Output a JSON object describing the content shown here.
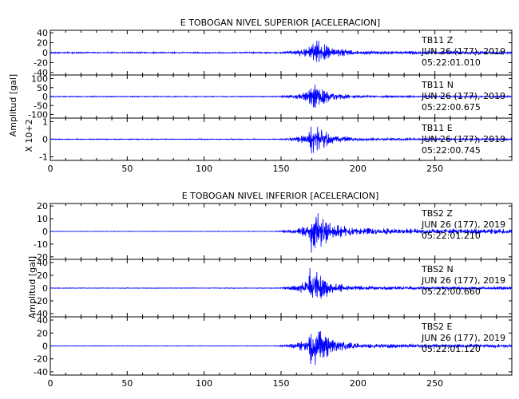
{
  "chart_data": [
    {
      "type": "line",
      "title": "E TOBOGAN NIVEL SUPERIOR [ACELERACION]",
      "ylabel": "Amplitud [gal]",
      "scale_label": "X 10+2",
      "xlim": [
        0,
        300
      ],
      "x_ticks": [
        0,
        50,
        100,
        150,
        200,
        250
      ],
      "color": "#0000ff",
      "panels": [
        {
          "station": "TB11",
          "component": "Z",
          "date": "JUN 26 (177), 2019",
          "time": "05:22:01.010",
          "ylim": [
            -45,
            45
          ],
          "y_ticks": [
            40,
            20,
            0,
            -20,
            -40
          ],
          "y_tick_labels": [
            "40",
            "20",
            "0",
            "-20",
            "-40"
          ],
          "onset": 143,
          "peak_time": 170,
          "peak_amplitude": 35,
          "pre_noise": 1.5,
          "coda_level": 3,
          "coda_decay": 30,
          "cycles_per_sec": 1.6
        },
        {
          "station": "TB11",
          "component": "N",
          "date": "JUN 26 (177), 2019",
          "time": "05:22:00.675",
          "ylim": [
            -120,
            120
          ],
          "y_ticks": [
            100,
            50,
            0,
            -50,
            -100
          ],
          "y_tick_labels": [
            "100",
            "50",
            "0",
            "-50",
            "-100"
          ],
          "onset": 145,
          "peak_time": 170,
          "peak_amplitude": 100,
          "pre_noise": 3,
          "coda_level": 5,
          "coda_decay": 28,
          "cycles_per_sec": 1.6
        },
        {
          "station": "TB11",
          "component": "E",
          "date": "JUN 26 (177), 2019",
          "time": "05:22:00.745",
          "ylim": [
            -1.2,
            1.2
          ],
          "y_ticks": [
            1,
            0,
            -1
          ],
          "y_tick_labels": [
            "1",
            "0",
            "-1"
          ],
          "onset": 145,
          "peak_time": 170,
          "peak_amplitude": 1.1,
          "pre_noise": 0.03,
          "coda_level": 0.06,
          "coda_decay": 28,
          "cycles_per_sec": 1.6
        }
      ]
    },
    {
      "type": "line",
      "title": "E TOBOGAN NIVEL INFERIOR [ACELERACION]",
      "ylabel": "Amplitud [gal]",
      "xlim": [
        0,
        300
      ],
      "x_ticks": [
        0,
        50,
        100,
        150,
        200,
        250
      ],
      "color": "#0000ff",
      "panels": [
        {
          "station": "TBS2",
          "component": "Z",
          "date": "JUN 26 (177), 2019",
          "time": "05:22:01.210",
          "ylim": [
            -22,
            22
          ],
          "y_ticks": [
            20,
            10,
            0,
            -10,
            -20
          ],
          "y_tick_labels": [
            "20",
            "10",
            "0",
            "-10",
            "-20"
          ],
          "onset": 142,
          "peak_time": 170,
          "peak_amplitude": 19,
          "pre_noise": 0.2,
          "coda_level": 2,
          "coda_decay": 35,
          "cycles_per_sec": 1.8
        },
        {
          "station": "TBS2",
          "component": "N",
          "date": "JUN 26 (177), 2019",
          "time": "05:22:00.660",
          "ylim": [
            -45,
            45
          ],
          "y_ticks": [
            40,
            20,
            0,
            -20,
            -40
          ],
          "y_tick_labels": [
            "40",
            "20",
            "0",
            "-20",
            "-40"
          ],
          "onset": 145,
          "peak_time": 169,
          "peak_amplitude": 40,
          "pre_noise": 0.5,
          "coda_level": 2.5,
          "coda_decay": 28,
          "cycles_per_sec": 1.6
        },
        {
          "station": "TBS2",
          "component": "E",
          "date": "JUN 26 (177), 2019",
          "time": "05:22:01.120",
          "ylim": [
            -45,
            45
          ],
          "y_ticks": [
            40,
            20,
            0,
            -20,
            -40
          ],
          "y_tick_labels": [
            "40",
            "20",
            "0",
            "-20",
            "-40"
          ],
          "onset": 142,
          "peak_time": 170,
          "peak_amplitude": 40,
          "pre_noise": 0.5,
          "coda_level": 3,
          "coda_decay": 30,
          "cycles_per_sec": 1.6
        }
      ]
    }
  ]
}
